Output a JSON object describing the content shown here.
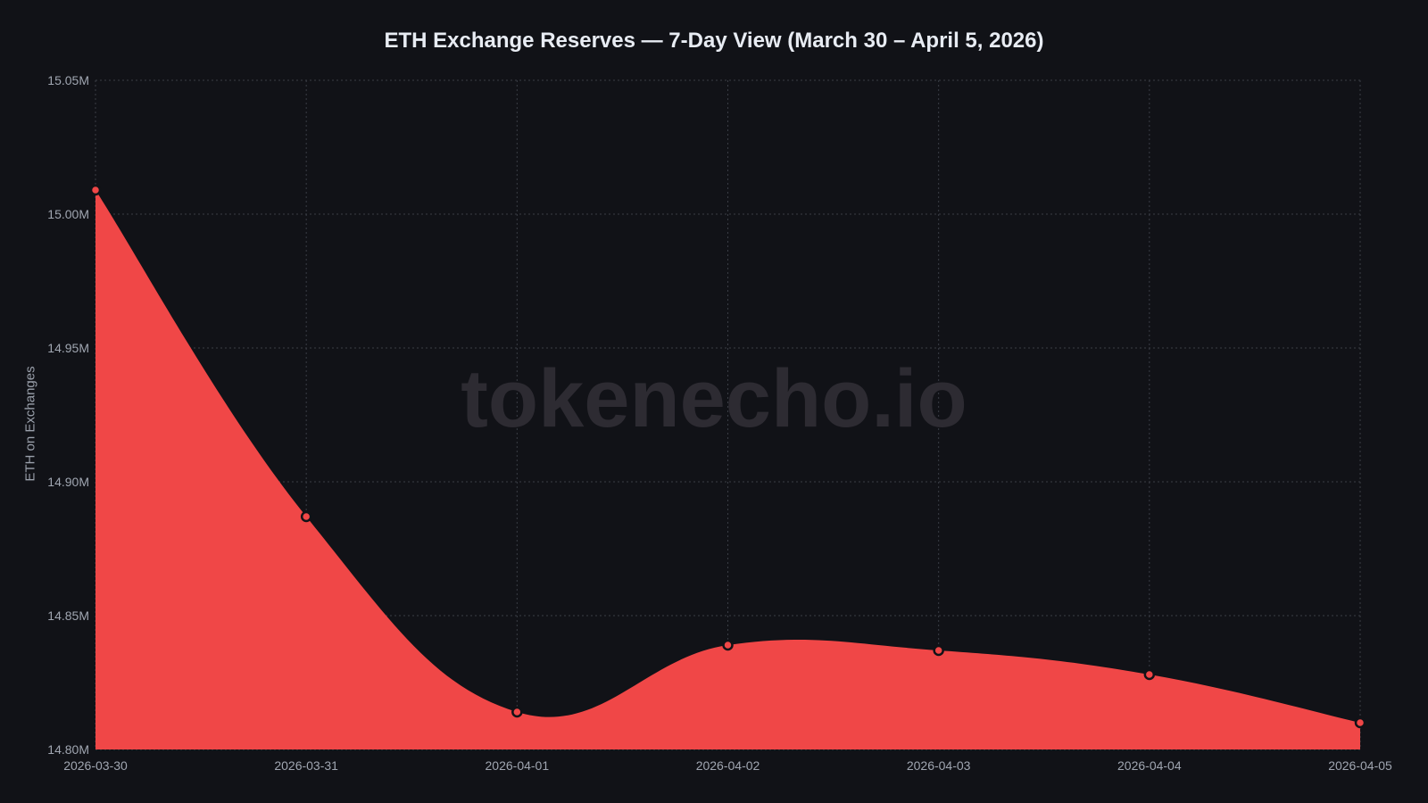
{
  "chart_data": {
    "type": "area",
    "title": "ETH Exchange Reserves — 7-Day View (March 30 – April 5, 2026)",
    "xlabel": "",
    "ylabel": "ETH on Exchanges",
    "categories": [
      "2026-03-30",
      "2026-03-31",
      "2026-04-01",
      "2026-04-02",
      "2026-04-03",
      "2026-04-04",
      "2026-04-05"
    ],
    "series": [
      {
        "name": "ETH on Exchanges",
        "values": [
          15009000,
          14887000,
          14814000,
          14839000,
          14837000,
          14828000,
          14810000
        ]
      }
    ],
    "ylim": [
      14800000,
      15050000
    ],
    "yticks": [
      "14.80M",
      "14.85M",
      "14.90M",
      "14.95M",
      "15.00M",
      "15.05M"
    ],
    "grid": true,
    "legend": "none",
    "fill_color": "#f04747",
    "watermark": "tokenecho.io"
  }
}
